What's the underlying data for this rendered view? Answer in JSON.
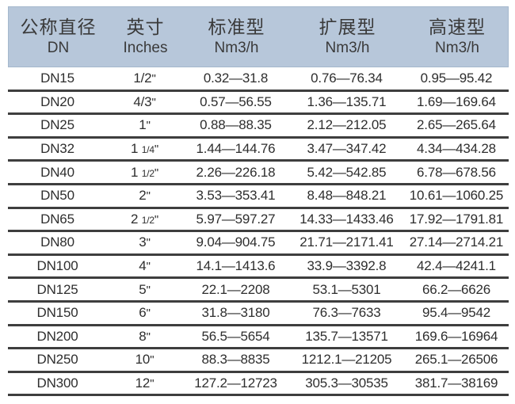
{
  "colors": {
    "header_bg": "#b7c7da",
    "header_border": "#a5b8cd",
    "row_line": "#3e3e3e",
    "text": "#2e2e2e"
  },
  "inch_mark": "\"",
  "header": {
    "columns": [
      {
        "title": "公称直径",
        "sub": "DN"
      },
      {
        "title": "英寸",
        "sub": "Inches"
      },
      {
        "title": "标准型",
        "sub": "Nm3/h"
      },
      {
        "title": "扩展型",
        "sub": "Nm3/h"
      },
      {
        "title": "高速型",
        "sub": "Nm3/h"
      }
    ]
  },
  "rows": [
    {
      "dn": "DN15",
      "inch_whole": "1/2",
      "inch_frac": "",
      "standard": "0.32—31.8",
      "extended": "0.76—76.34",
      "high": "0.95—95.42"
    },
    {
      "dn": "DN20",
      "inch_whole": "4/3",
      "inch_frac": "",
      "standard": "0.57—56.55",
      "extended": "1.36—135.71",
      "high": "1.69—169.64"
    },
    {
      "dn": "DN25",
      "inch_whole": "1",
      "inch_frac": "",
      "standard": "0.88—88.35",
      "extended": "2.12—212.05",
      "high": "2.65—265.64"
    },
    {
      "dn": "DN32",
      "inch_whole": "1",
      "inch_frac": "1/4",
      "standard": "1.44—144.76",
      "extended": "3.47—347.42",
      "high": "4.34—434.28"
    },
    {
      "dn": "DN40",
      "inch_whole": "1",
      "inch_frac": "1/2",
      "standard": "2.26—226.18",
      "extended": "5.42—542.85",
      "high": "6.78—678.56"
    },
    {
      "dn": "DN50",
      "inch_whole": "2",
      "inch_frac": "",
      "standard": "3.53—353.41",
      "extended": "8.48—848.21",
      "high": "10.61—1060.25"
    },
    {
      "dn": "DN65",
      "inch_whole": "2",
      "inch_frac": "1/2",
      "standard": "5.97—597.27",
      "extended": "14.33—1433.46",
      "high": "17.92—1791.81"
    },
    {
      "dn": "DN80",
      "inch_whole": "3",
      "inch_frac": "",
      "standard": "9.04—904.75",
      "extended": "21.71—2171.41",
      "high": "27.14—2714.21"
    },
    {
      "dn": "DN100",
      "inch_whole": "4",
      "inch_frac": "",
      "standard": "14.1—1413.6",
      "extended": "33.9—3392.8",
      "high": "42.4—4241.1"
    },
    {
      "dn": "DN125",
      "inch_whole": "5",
      "inch_frac": "",
      "standard": "22.1—2208",
      "extended": "53.1—5301",
      "high": "66.2—6626"
    },
    {
      "dn": "DN150",
      "inch_whole": "6",
      "inch_frac": "",
      "standard": "31.8—3180",
      "extended": "76.3—7633",
      "high": "95.4—9542"
    },
    {
      "dn": "DN200",
      "inch_whole": "8",
      "inch_frac": "",
      "standard": "56.5—5654",
      "extended": "135.7—13571",
      "high": "169.6—16964"
    },
    {
      "dn": "DN250",
      "inch_whole": "10",
      "inch_frac": "",
      "standard": "88.3—8835",
      "extended": "1212.1—21205",
      "high": "265.1—26506"
    },
    {
      "dn": "DN300",
      "inch_whole": "12",
      "inch_frac": "",
      "standard": "127.2—12723",
      "extended": "305.3—30535",
      "high": "381.7—38169"
    }
  ]
}
